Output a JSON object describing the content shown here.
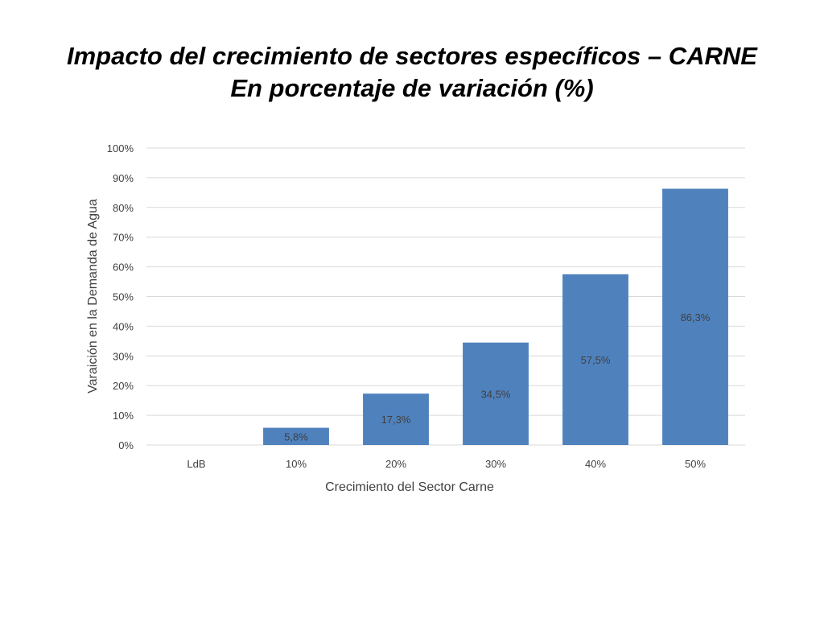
{
  "title_line1": "Impacto del crecimiento de sectores específicos – CARNE",
  "title_line2": "En porcentaje de variación (%)",
  "chart_data": {
    "type": "bar",
    "categories": [
      "LdB",
      "10%",
      "20%",
      "30%",
      "40%",
      "50%"
    ],
    "values": [
      0,
      5.8,
      17.3,
      34.5,
      57.5,
      86.3
    ],
    "data_labels": [
      "",
      "5,8%",
      "17,3%",
      "34,5%",
      "57,5%",
      "86,3%"
    ],
    "xlabel": "Crecimiento del Sector Carne",
    "ylabel": "Varaición en la Demanda de Agua",
    "ylim": [
      0,
      100
    ],
    "yticks": [
      0,
      10,
      20,
      30,
      40,
      50,
      60,
      70,
      80,
      90,
      100
    ],
    "ytick_labels": [
      "0%",
      "10%",
      "20%",
      "30%",
      "40%",
      "50%",
      "60%",
      "70%",
      "80%",
      "90%",
      "100%"
    ],
    "grid": true,
    "legend": "none",
    "bar_color": "#4f81bd",
    "grid_color": "#d9d9d9"
  }
}
